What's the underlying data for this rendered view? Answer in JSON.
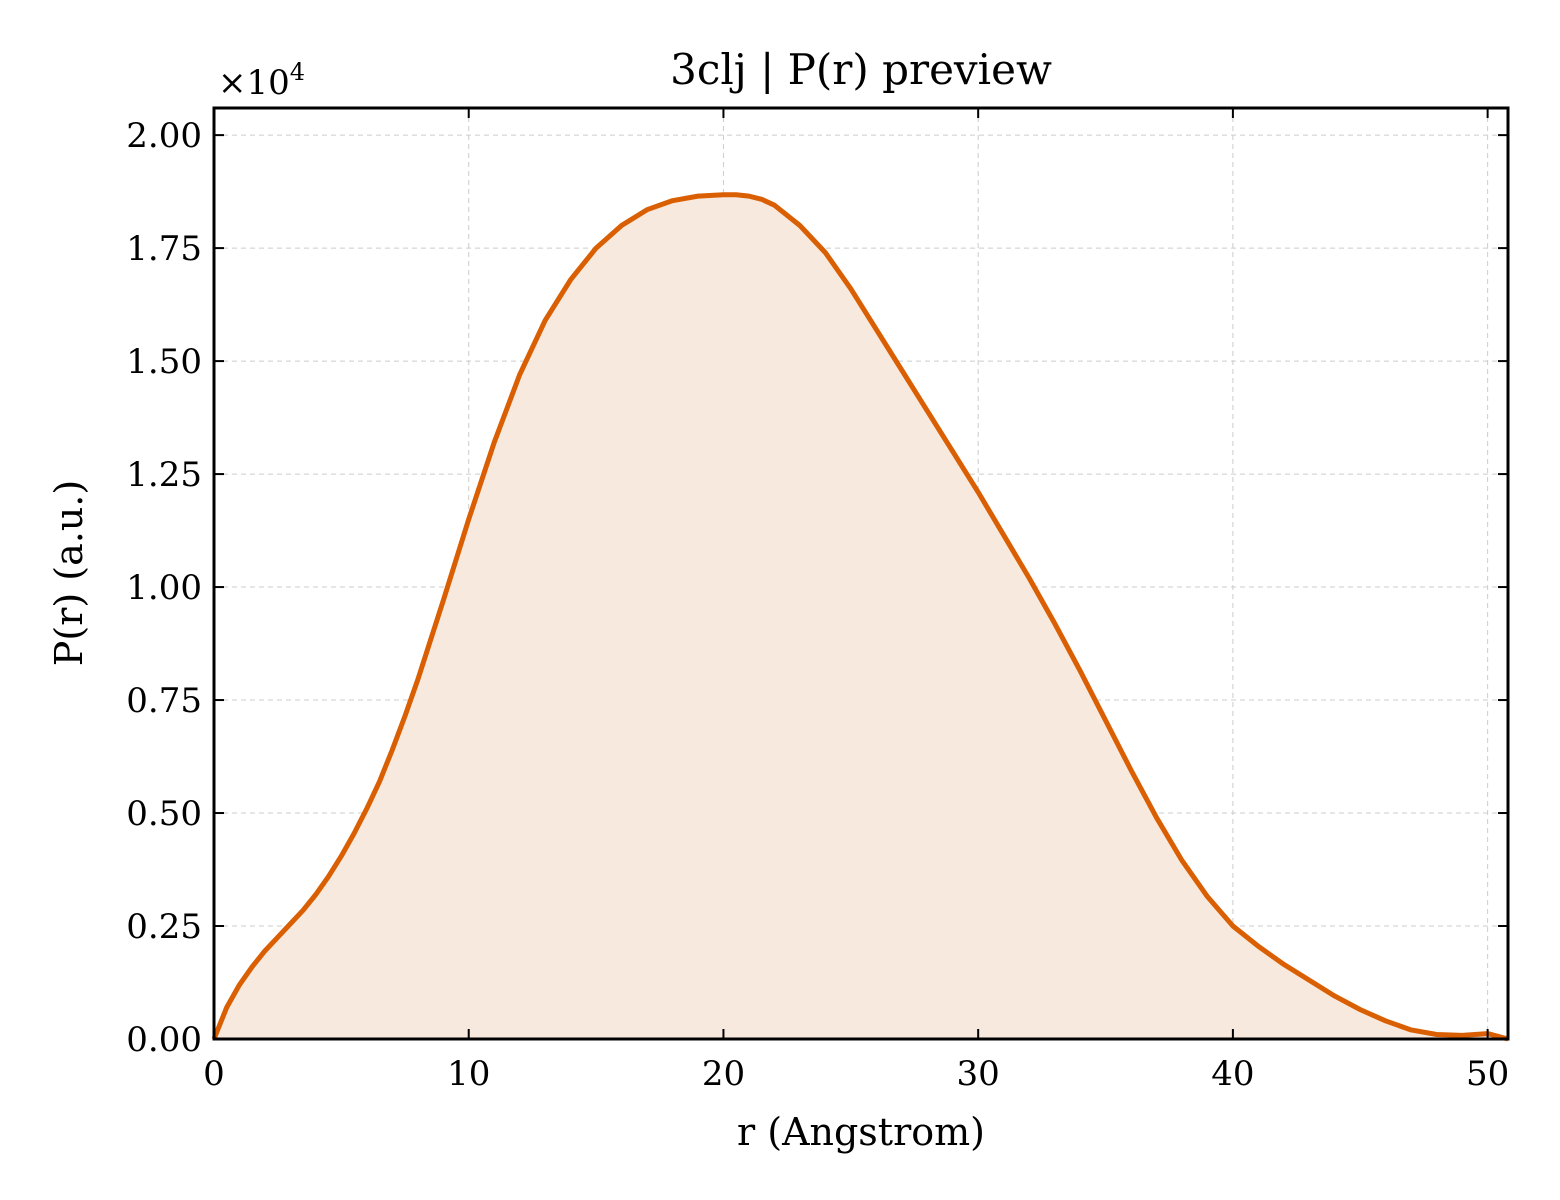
{
  "chart_data": {
    "type": "area",
    "title": "3clj | P(r) preview",
    "xlabel": "r (Angstrom)",
    "ylabel": "P(r) (a.u.)",
    "y_multiplier_label": "×10",
    "y_multiplier_exponent": "4",
    "xlim": [
      0,
      50.8
    ],
    "ylim": [
      0,
      2.06
    ],
    "y_scale_factor": 10000,
    "xticks": [
      0,
      10,
      20,
      30,
      40,
      50
    ],
    "xtick_labels": [
      "0",
      "10",
      "20",
      "30",
      "40",
      "50"
    ],
    "yticks": [
      0,
      0.25,
      0.5,
      0.75,
      1.0,
      1.25,
      1.5,
      1.75,
      2.0
    ],
    "ytick_labels": [
      "0.00",
      "0.25",
      "0.50",
      "0.75",
      "1.00",
      "1.25",
      "1.50",
      "1.75",
      "2.00"
    ],
    "grid": true,
    "line_color": "#d95f02",
    "fill_color": "#f8e9de",
    "series": [
      {
        "x": [
          0,
          0.5,
          1,
          1.5,
          2,
          2.5,
          3,
          3.5,
          4,
          4.5,
          5,
          5.5,
          6,
          6.5,
          7,
          7.5,
          8,
          9,
          10,
          11,
          12,
          13,
          14,
          15,
          16,
          17,
          18,
          19,
          20,
          20.5,
          21,
          21.5,
          22,
          23,
          24,
          25,
          26,
          27,
          28,
          29,
          30,
          31,
          32,
          33,
          34,
          35,
          36,
          37,
          38,
          39,
          40,
          41,
          42,
          43,
          44,
          45,
          46,
          47,
          48,
          49,
          50,
          50.8
        ],
        "y": [
          0,
          0.07,
          0.12,
          0.16,
          0.195,
          0.225,
          0.255,
          0.285,
          0.32,
          0.36,
          0.405,
          0.455,
          0.51,
          0.57,
          0.64,
          0.715,
          0.795,
          0.97,
          1.15,
          1.32,
          1.47,
          1.59,
          1.68,
          1.75,
          1.8,
          1.835,
          1.855,
          1.865,
          1.868,
          1.868,
          1.865,
          1.858,
          1.845,
          1.8,
          1.74,
          1.66,
          1.57,
          1.48,
          1.39,
          1.3,
          1.21,
          1.115,
          1.02,
          0.92,
          0.815,
          0.705,
          0.595,
          0.49,
          0.395,
          0.315,
          0.25,
          0.205,
          0.165,
          0.13,
          0.095,
          0.065,
          0.04,
          0.02,
          0.01,
          0.008,
          0.012,
          0.0
        ]
      }
    ]
  }
}
